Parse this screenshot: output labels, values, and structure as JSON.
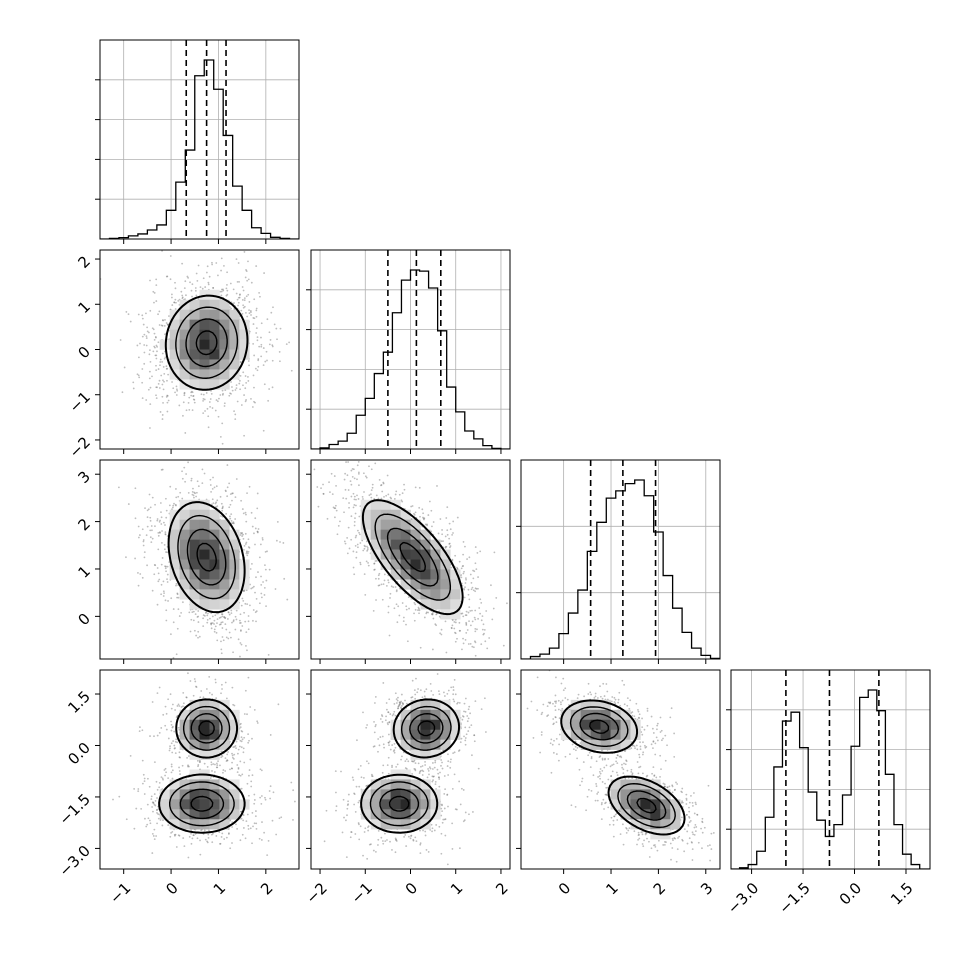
{
  "chart_data": {
    "type": "corner",
    "grid": true,
    "quantiles": [
      0.16,
      0.5,
      0.84
    ],
    "parameters": [
      {
        "range": [
          -1.5,
          2.7
        ],
        "ticks": [
          -1,
          0,
          1,
          2
        ],
        "tick_labels": [
          "−1",
          "0",
          "1",
          "2"
        ],
        "quantile_values": [
          0.32,
          0.75,
          1.16
        ],
        "hist_bins": [
          -1.5,
          -1.3,
          -1.1,
          -0.9,
          -0.7,
          -0.5,
          -0.3,
          -0.1,
          0.1,
          0.3,
          0.5,
          0.7,
          0.9,
          1.1,
          1.3,
          1.5,
          1.7,
          1.9,
          2.1,
          2.3,
          2.5,
          2.7
        ],
        "hist_counts": [
          0,
          5,
          12,
          28,
          45,
          80,
          125,
          255,
          505,
          790,
          1450,
          1590,
          1330,
          920,
          470,
          255,
          100,
          50,
          15,
          5,
          0
        ]
      },
      {
        "range": [
          -2.2,
          2.2
        ],
        "ticks": [
          -2,
          -1,
          0,
          1,
          2
        ],
        "tick_labels": [
          "−2",
          "−1",
          "0",
          "1",
          "2"
        ],
        "quantile_values": [
          -0.5,
          0.13,
          0.67
        ],
        "hist_bins": [
          -2.2,
          -2.0,
          -1.8,
          -1.6,
          -1.4,
          -1.2,
          -1.0,
          -0.8,
          -0.6,
          -0.4,
          -0.2,
          0.0,
          0.2,
          0.4,
          0.6,
          0.8,
          1.0,
          1.2,
          1.4,
          1.6,
          1.8,
          2.0,
          2.2
        ],
        "hist_counts": [
          0,
          10,
          40,
          70,
          140,
          300,
          450,
          670,
          860,
          1210,
          1500,
          1590,
          1580,
          1430,
          1050,
          550,
          330,
          160,
          90,
          30,
          5,
          0
        ]
      },
      {
        "range": [
          -0.9,
          3.3
        ],
        "ticks": [
          0,
          1,
          2,
          3
        ],
        "tick_labels": [
          "0",
          "1",
          "2",
          "3"
        ],
        "quantile_values": [
          0.57,
          1.25,
          1.94
        ],
        "hist_bins": [
          -0.9,
          -0.7,
          -0.5,
          -0.3,
          -0.1,
          0.1,
          0.3,
          0.5,
          0.7,
          0.9,
          1.1,
          1.3,
          1.5,
          1.7,
          1.9,
          2.1,
          2.3,
          2.5,
          2.7,
          2.9,
          3.1,
          3.3
        ],
        "hist_counts": [
          0,
          20,
          40,
          90,
          210,
          380,
          570,
          890,
          1130,
          1330,
          1390,
          1450,
          1480,
          1350,
          1050,
          690,
          420,
          220,
          90,
          30,
          5
        ]
      },
      {
        "range": [
          -3.6,
          2.2
        ],
        "ticks": [
          -3.0,
          -1.5,
          0.0,
          1.5
        ],
        "tick_labels": [
          "−3.0",
          "−1.5",
          "0.0",
          "1.5"
        ],
        "quantile_values": [
          -2.0,
          -0.73,
          0.71
        ],
        "hist_bins": [
          -3.6,
          -3.35,
          -3.1,
          -2.85,
          -2.6,
          -2.35,
          -2.1,
          -1.85,
          -1.6,
          -1.35,
          -1.1,
          -0.85,
          -0.6,
          -0.35,
          -0.1,
          0.15,
          0.4,
          0.65,
          0.9,
          1.15,
          1.4,
          1.65,
          1.9,
          2.2
        ],
        "hist_counts": [
          0,
          8,
          30,
          120,
          350,
          690,
          1000,
          1060,
          820,
          520,
          330,
          220,
          300,
          500,
          830,
          1160,
          1210,
          1070,
          640,
          300,
          100,
          30,
          0
        ]
      }
    ],
    "pairs": [
      {
        "x": 0,
        "y": 1,
        "blobs": [
          {
            "mean": [
              0.75,
              0.15
            ],
            "sd": [
              0.43,
              0.52
            ],
            "rho": 0.05,
            "weight": 1.0
          }
        ]
      },
      {
        "x": 0,
        "y": 2,
        "blobs": [
          {
            "mean": [
              0.75,
              1.25
            ],
            "sd": [
              0.4,
              0.58
            ],
            "rho": -0.25,
            "weight": 1.0
          }
        ]
      },
      {
        "x": 1,
        "y": 2,
        "blobs": [
          {
            "mean": [
              0.05,
              1.25
            ],
            "sd": [
              0.55,
              0.6
            ],
            "rho": -0.7,
            "weight": 1.0
          }
        ]
      },
      {
        "x": 0,
        "y": 3,
        "blobs": [
          {
            "mean": [
              0.75,
              0.5
            ],
            "sd": [
              0.32,
              0.42
            ],
            "rho": 0.0,
            "weight": 0.5
          },
          {
            "mean": [
              0.65,
              -1.7
            ],
            "sd": [
              0.45,
              0.42
            ],
            "rho": 0.0,
            "weight": 0.5
          }
        ]
      },
      {
        "x": 1,
        "y": 3,
        "blobs": [
          {
            "mean": [
              0.35,
              0.5
            ],
            "sd": [
              0.36,
              0.42
            ],
            "rho": 0.05,
            "weight": 0.5
          },
          {
            "mean": [
              -0.25,
              -1.7
            ],
            "sd": [
              0.42,
              0.42
            ],
            "rho": 0.0,
            "weight": 0.5
          }
        ]
      },
      {
        "x": 2,
        "y": 3,
        "blobs": [
          {
            "mean": [
              0.75,
              0.55
            ],
            "sd": [
              0.4,
              0.38
            ],
            "rho": -0.2,
            "weight": 0.5
          },
          {
            "mean": [
              1.75,
              -1.75
            ],
            "sd": [
              0.4,
              0.42
            ],
            "rho": -0.45,
            "weight": 0.5
          }
        ]
      }
    ],
    "colors": {
      "line": "#000000",
      "grid": "#b0b0b0",
      "points": "#6e6e6e",
      "density_max": "#000000",
      "background": "#ffffff"
    }
  }
}
